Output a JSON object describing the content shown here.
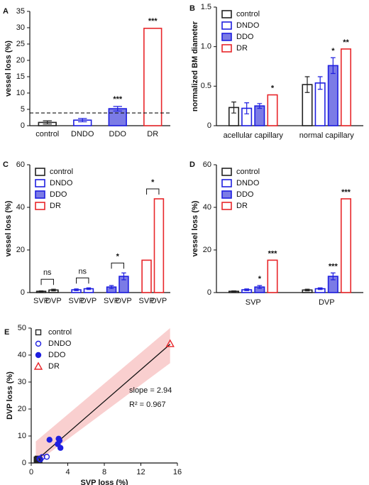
{
  "chart_data": [
    {
      "type": "bar",
      "panel": "A",
      "ylabel": "vessel loss (%)",
      "categories": [
        "control",
        "DNDO",
        "DDO",
        "DR"
      ],
      "values": [
        1.0,
        1.7,
        5.2,
        29.8
      ],
      "errors": [
        0.5,
        0.5,
        0.7,
        0
      ],
      "colors": [
        "#222222",
        "#1f1fe0",
        "#1f1fe0",
        "#e8262a"
      ],
      "fills": [
        "#ffffff",
        "#ffffff",
        "#7b7be6",
        "#ffffff"
      ],
      "ylim": [
        0,
        35
      ],
      "yticks": [
        0,
        5,
        10,
        15,
        20,
        25,
        30,
        35
      ],
      "hline": 3.9,
      "annotations": [
        {
          "category": 2,
          "text": "***"
        },
        {
          "category": 3,
          "text": "***"
        }
      ]
    },
    {
      "type": "grouped_bar",
      "panel": "B",
      "ylabel": "normalized BM diameter",
      "categories": [
        "acellular capillary",
        "normal capillary"
      ],
      "series": [
        {
          "name": "control",
          "color": "#222222",
          "fill": "#ffffff",
          "values": [
            0.23,
            0.52
          ],
          "errors": [
            0.07,
            0.1
          ]
        },
        {
          "name": "DNDO",
          "color": "#1f1fe0",
          "fill": "#ffffff",
          "values": [
            0.22,
            0.54
          ],
          "errors": [
            0.07,
            0.08
          ]
        },
        {
          "name": "DDO",
          "color": "#1f1fe0",
          "fill": "#7b7be6",
          "values": [
            0.25,
            0.76
          ],
          "errors": [
            0.03,
            0.1
          ]
        },
        {
          "name": "DR",
          "color": "#e8262a",
          "fill": "#ffffff",
          "values": [
            0.39,
            0.97
          ],
          "errors": [
            0,
            0
          ]
        }
      ],
      "ylim": [
        0,
        1.5
      ],
      "yticks": [
        0,
        0.5,
        {
          "value": 1,
          "label": "1.0"
        },
        1.5
      ],
      "annotations": [
        {
          "series": 3,
          "category": 0,
          "text": "*"
        },
        {
          "series": 2,
          "category": 1,
          "text": "*"
        },
        {
          "series": 3,
          "category": 1,
          "text": "**"
        }
      ]
    },
    {
      "type": "paired_bar",
      "panel": "C",
      "ylabel": "vessel loss (%)",
      "subcategories": [
        "SVP",
        "DVP"
      ],
      "series": [
        {
          "name": "control",
          "color": "#222222",
          "fill": "#ffffff",
          "values": [
            0.6,
            1.2
          ],
          "errors": [
            0.2,
            0.4
          ]
        },
        {
          "name": "DNDO",
          "color": "#1f1fe0",
          "fill": "#ffffff",
          "values": [
            1.3,
            1.8
          ],
          "errors": [
            0.4,
            0.4
          ]
        },
        {
          "name": "DDO",
          "color": "#1f1fe0",
          "fill": "#7b7be6",
          "values": [
            2.6,
            7.6
          ],
          "errors": [
            0.7,
            1.6
          ]
        },
        {
          "name": "DR",
          "color": "#e8262a",
          "fill": "#ffffff",
          "values": [
            15.2,
            44
          ],
          "errors": [
            0,
            0
          ]
        }
      ],
      "ylim": [
        0,
        60
      ],
      "yticks": [
        0,
        20,
        40,
        60
      ],
      "annotations": [
        {
          "series": 0,
          "text": "ns"
        },
        {
          "series": 1,
          "text": "ns"
        },
        {
          "series": 2,
          "text": "*"
        },
        {
          "series": 3,
          "text": "*"
        }
      ]
    },
    {
      "type": "grouped_bar",
      "panel": "D",
      "ylabel": "vessel loss (%)",
      "categories": [
        "SVP",
        "DVP"
      ],
      "series": [
        {
          "name": "control",
          "color": "#222222",
          "fill": "#ffffff",
          "values": [
            0.6,
            1.2
          ],
          "errors": [
            0.2,
            0.4
          ]
        },
        {
          "name": "DNDO",
          "color": "#1f1fe0",
          "fill": "#ffffff",
          "values": [
            1.3,
            1.8
          ],
          "errors": [
            0.4,
            0.4
          ]
        },
        {
          "name": "DDO",
          "color": "#1f1fe0",
          "fill": "#7b7be6",
          "values": [
            2.6,
            7.6
          ],
          "errors": [
            0.7,
            1.6
          ]
        },
        {
          "name": "DR",
          "color": "#e8262a",
          "fill": "#ffffff",
          "values": [
            15.2,
            44
          ],
          "errors": [
            0,
            0
          ]
        }
      ],
      "ylim": [
        0,
        60
      ],
      "yticks": [
        0,
        20,
        40,
        60
      ],
      "annotations": [
        {
          "series": 2,
          "category": 0,
          "text": "*"
        },
        {
          "series": 3,
          "category": 0,
          "text": "***"
        },
        {
          "series": 2,
          "category": 1,
          "text": "***"
        },
        {
          "series": 3,
          "category": 1,
          "text": "***"
        }
      ]
    },
    {
      "type": "scatter",
      "panel": "E",
      "xlabel": "SVP loss (%)",
      "ylabel": "DVP loss (%)",
      "series": [
        {
          "name": "control",
          "marker": "square",
          "color": "#222222",
          "x": [
            0.6,
            0.7,
            0.8,
            0.9,
            0.6
          ],
          "y": [
            1.3,
            1.6,
            1.5,
            1.2,
            1.0
          ]
        },
        {
          "name": "DNDO",
          "marker": "circle-open",
          "color": "#1f1fe0",
          "x": [
            1.0,
            1.2,
            1.7,
            0.9
          ],
          "y": [
            1.3,
            2.2,
            2.3,
            1.6
          ]
        },
        {
          "name": "DDO",
          "marker": "circle",
          "color": "#1f1fe0",
          "x": [
            2.0,
            3.0,
            3.1,
            2.9,
            3.2
          ],
          "y": [
            8.6,
            9.0,
            8.3,
            7.0,
            5.6
          ]
        },
        {
          "name": "DR",
          "marker": "triangle",
          "color": "#e8262a",
          "x": [
            15.2
          ],
          "y": [
            44.2
          ]
        }
      ],
      "fit": {
        "x": [
          0.5,
          15.2
        ],
        "y": [
          0.8,
          44
        ]
      },
      "band": {
        "x": [
          0.5,
          15.2
        ],
        "lower": [
          0,
          37
        ],
        "upper": [
          8,
          50
        ],
        "color": "#f9cfcf"
      },
      "annotations": [
        "slope = 2.94",
        "R² = 0.967"
      ],
      "xlim": [
        0,
        16
      ],
      "xticks": [
        0,
        4,
        8,
        12,
        16
      ],
      "ylim": [
        0,
        50
      ],
      "yticks": [
        0,
        10,
        20,
        30,
        40,
        50
      ]
    }
  ]
}
